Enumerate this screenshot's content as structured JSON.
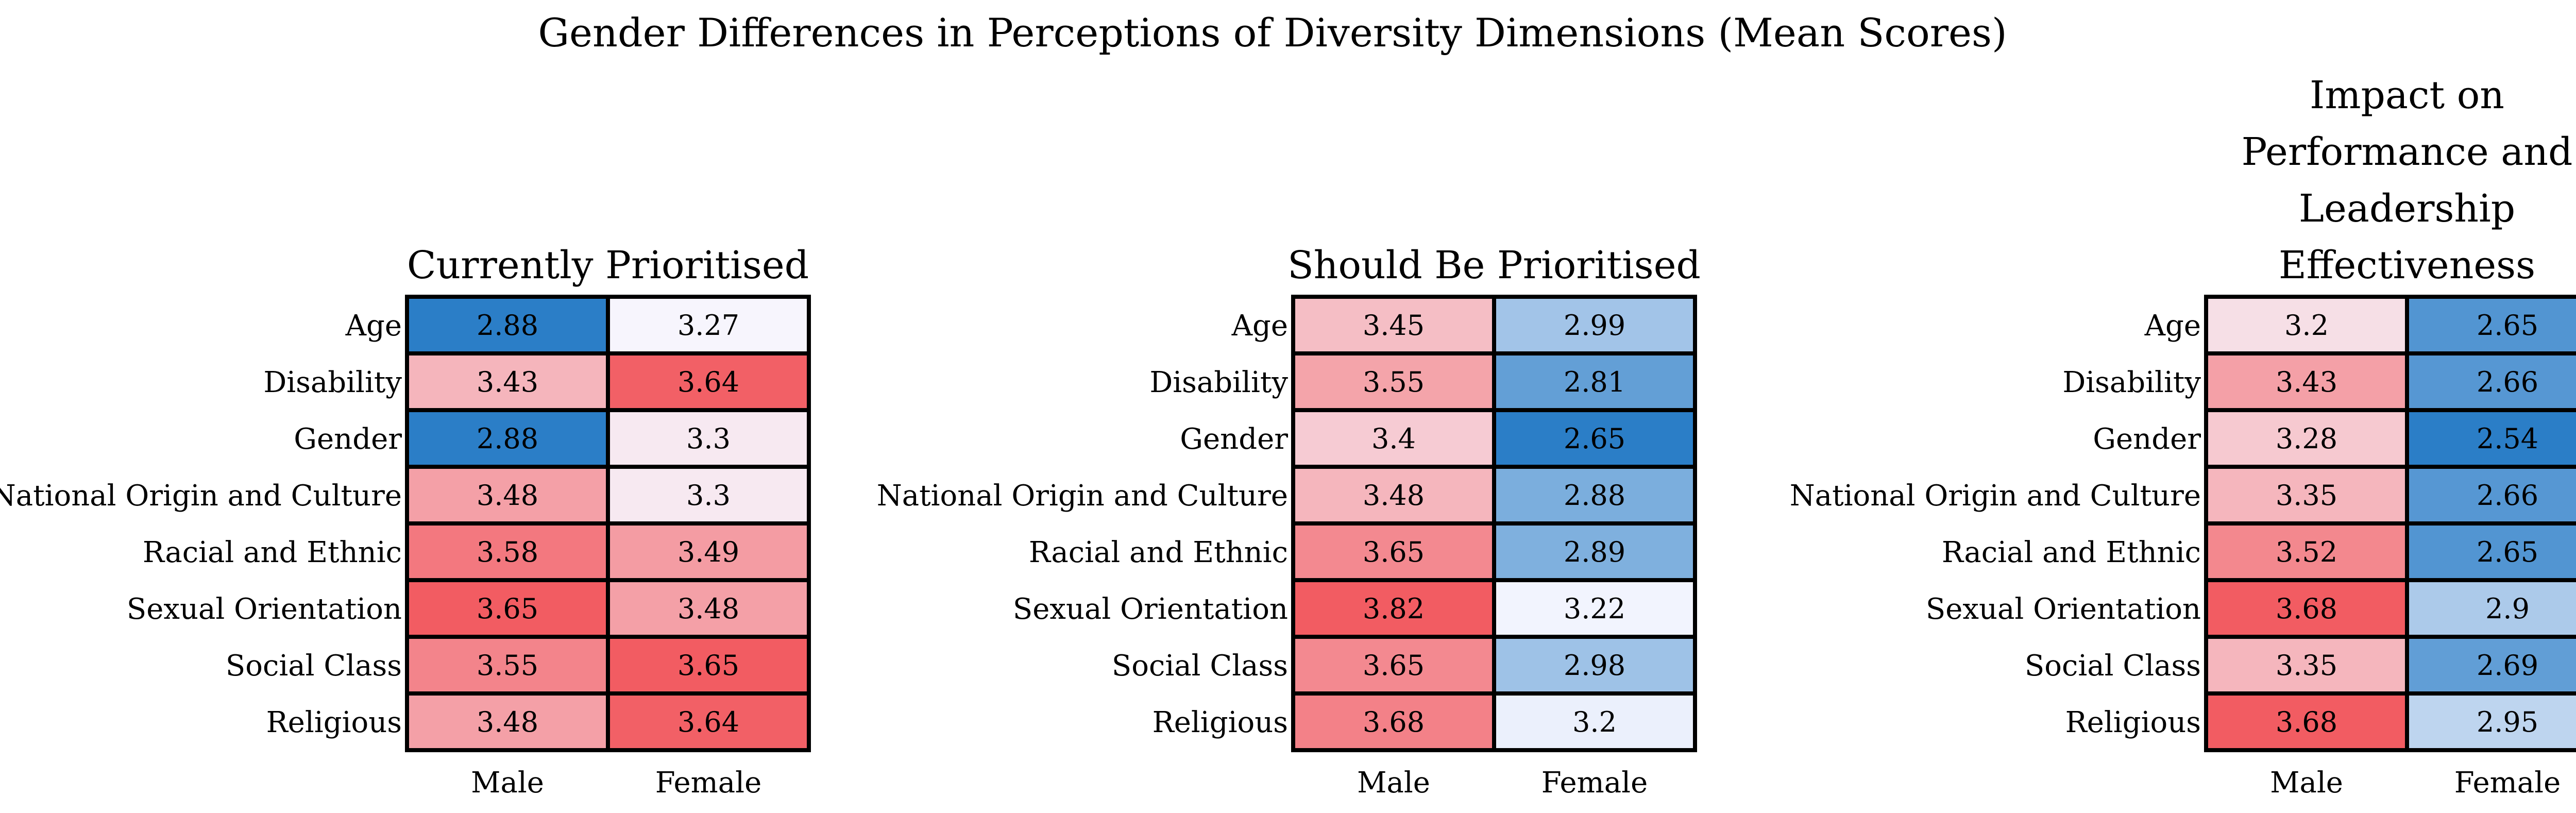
{
  "figure_title": "Gender Differences in Perceptions of Diversity Dimensions (Mean Scores)",
  "chart_data": [
    {
      "type": "heatmap",
      "title": "Currently Prioritised",
      "rows": [
        "Age",
        "Disability",
        "Gender",
        "National Origin and Culture",
        "Racial and Ethnic",
        "Sexual Orientation",
        "Social Class",
        "Religious"
      ],
      "columns": [
        "Male",
        "Female"
      ],
      "values": [
        [
          2.88,
          3.27
        ],
        [
          3.43,
          3.64
        ],
        [
          2.88,
          3.3
        ],
        [
          3.48,
          3.3
        ],
        [
          3.58,
          3.49
        ],
        [
          3.65,
          3.48
        ],
        [
          3.55,
          3.65
        ],
        [
          3.48,
          3.64
        ]
      ]
    },
    {
      "type": "heatmap",
      "title": "Should Be Prioritised",
      "rows": [
        "Age",
        "Disability",
        "Gender",
        "National Origin and Culture",
        "Racial and Ethnic",
        "Sexual Orientation",
        "Social Class",
        "Religious"
      ],
      "columns": [
        "Male",
        "Female"
      ],
      "values": [
        [
          3.45,
          2.99
        ],
        [
          3.55,
          2.81
        ],
        [
          3.4,
          2.65
        ],
        [
          3.48,
          2.88
        ],
        [
          3.65,
          2.89
        ],
        [
          3.82,
          3.22
        ],
        [
          3.65,
          2.98
        ],
        [
          3.68,
          3.2
        ]
      ]
    },
    {
      "type": "heatmap",
      "title": "Impact on Performance and Leadership Effectiveness",
      "title_lines": [
        "Impact on",
        "Performance and",
        "Leadership",
        "Effectiveness"
      ],
      "rows": [
        "Age",
        "Disability",
        "Gender",
        "National Origin and Culture",
        "Racial and Ethnic",
        "Sexual Orientation",
        "Social Class",
        "Religious"
      ],
      "columns": [
        "Male",
        "Female"
      ],
      "values": [
        [
          3.2,
          2.65
        ],
        [
          3.43,
          2.66
        ],
        [
          3.28,
          2.54
        ],
        [
          3.35,
          2.66
        ],
        [
          3.52,
          2.65
        ],
        [
          3.68,
          2.9
        ],
        [
          3.35,
          2.69
        ],
        [
          3.68,
          2.95
        ]
      ]
    }
  ],
  "colors": {
    "low": "#2b7ec7",
    "mid": "#f7f7ff",
    "high": "#f25c62",
    "grid": "#000000"
  }
}
